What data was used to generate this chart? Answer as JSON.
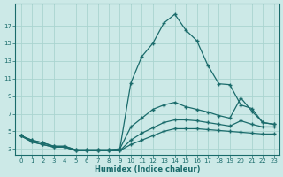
{
  "xlabel": "Humidex (Indice chaleur)",
  "bg_color": "#cce9e7",
  "grid_color": "#aad4d0",
  "line_color": "#1a6b6b",
  "x": [
    0,
    1,
    2,
    3,
    4,
    5,
    6,
    7,
    8,
    9,
    10,
    11,
    12,
    13,
    14,
    15,
    16,
    17,
    18,
    19,
    20,
    21,
    22,
    23
  ],
  "line1": [
    4.5,
    4.0,
    3.7,
    3.3,
    3.3,
    2.9,
    2.9,
    2.9,
    2.9,
    3.0,
    10.5,
    13.5,
    15.0,
    17.3,
    18.3,
    16.5,
    15.3,
    12.5,
    10.4,
    10.3,
    8.0,
    7.6,
    6.0,
    5.8
  ],
  "line2": [
    4.5,
    4.0,
    3.7,
    3.3,
    3.3,
    2.9,
    2.9,
    2.9,
    2.9,
    3.0,
    5.5,
    6.5,
    7.5,
    8.0,
    8.3,
    7.8,
    7.5,
    7.2,
    6.8,
    6.5,
    8.8,
    7.3,
    6.0,
    5.8
  ],
  "line3": [
    4.5,
    3.8,
    3.5,
    3.2,
    3.2,
    2.8,
    2.8,
    2.8,
    2.8,
    2.8,
    4.0,
    4.8,
    5.4,
    6.0,
    6.3,
    6.3,
    6.2,
    6.0,
    5.8,
    5.6,
    6.2,
    5.8,
    5.5,
    5.5
  ],
  "line4": [
    4.5,
    3.8,
    3.5,
    3.2,
    3.2,
    2.8,
    2.8,
    2.8,
    2.8,
    2.8,
    3.5,
    4.0,
    4.5,
    5.0,
    5.3,
    5.3,
    5.3,
    5.2,
    5.1,
    5.0,
    4.9,
    4.8,
    4.7,
    4.7
  ],
  "yticks": [
    3,
    5,
    7,
    9,
    11,
    13,
    15,
    17
  ],
  "ylim": [
    2.3,
    19.5
  ],
  "xlim": [
    -0.5,
    23.5
  ]
}
